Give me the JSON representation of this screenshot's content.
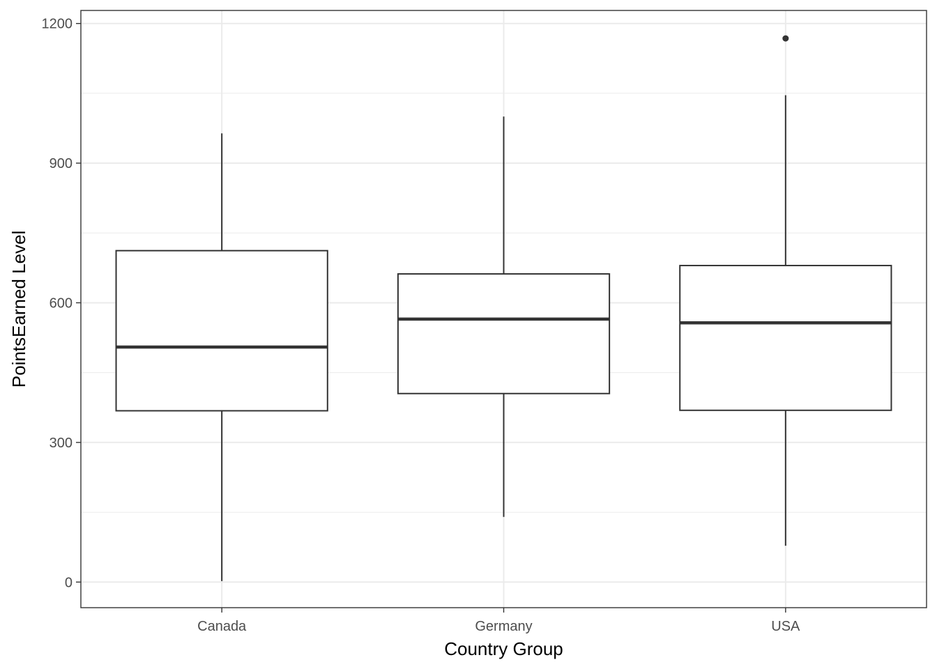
{
  "chart_data": {
    "type": "boxplot",
    "xlabel": "Country Group",
    "ylabel": "PointsEarned Level",
    "ylim": [
      -55,
      1228
    ],
    "y_ticks": [
      0,
      300,
      600,
      900,
      1200
    ],
    "y_tick_labels": [
      "0",
      "300",
      "600",
      "900",
      "1200"
    ],
    "y_minor_ticks": [
      150,
      450,
      750,
      1050
    ],
    "categories": [
      "Canada",
      "Germany",
      "USA"
    ],
    "boxes": [
      {
        "category": "Canada",
        "whisker_low": 2,
        "q1": 368,
        "median": 505,
        "q3": 712,
        "whisker_high": 964,
        "outliers": []
      },
      {
        "category": "Germany",
        "whisker_low": 140,
        "q1": 405,
        "median": 565,
        "q3": 662,
        "whisker_high": 1000,
        "outliers": []
      },
      {
        "category": "USA",
        "whisker_low": 78,
        "q1": 369,
        "median": 557,
        "q3": 680,
        "whisker_high": 1046,
        "outliers": [
          1168
        ]
      }
    ],
    "grid": true,
    "legend": "none",
    "colors": {
      "box_stroke": "#333333",
      "box_fill": "#ffffff",
      "grid": "#ebebeb",
      "panel_border": "#333333",
      "tick_text": "#4d4d4d",
      "title_text": "#000000"
    }
  }
}
